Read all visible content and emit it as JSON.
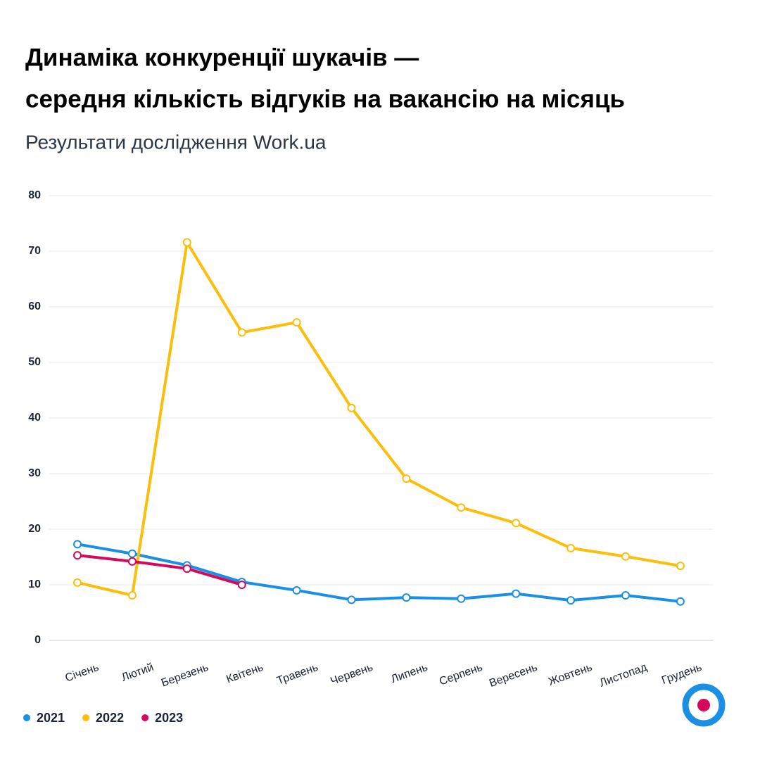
{
  "chart_data": {
    "type": "line",
    "title": [
      "Динаміка конкуренції шукачів —",
      "середня кількість відгуків на вакансію на місяць"
    ],
    "subtitle": "Результати дослідження Work.ua",
    "categories": [
      "Січень",
      "Лютий",
      "Березень",
      "Квітень",
      "Травень",
      "Червень",
      "Липень",
      "Серпень",
      "Вересень",
      "Жовтень",
      "Листопад",
      "Грудень"
    ],
    "series": [
      {
        "name": "2021",
        "color": "#1a8fe3",
        "values": [
          17.3,
          15.6,
          13.5,
          10.5,
          9.0,
          7.3,
          7.7,
          7.5,
          8.4,
          7.2,
          8.1,
          7.0
        ]
      },
      {
        "name": "2022",
        "color": "#fbbf0b",
        "values": [
          10.4,
          8.1,
          71.6,
          55.4,
          57.2,
          41.8,
          29.1,
          23.9,
          21.1,
          16.6,
          15.1,
          13.4
        ]
      },
      {
        "name": "2023",
        "color": "#d6085b",
        "values": [
          15.3,
          14.2,
          12.9,
          10.0,
          null,
          null,
          null,
          null,
          null,
          null,
          null,
          null
        ]
      }
    ],
    "ylim": [
      0,
      80
    ],
    "yticks": [
      0,
      10,
      20,
      30,
      40,
      50,
      60,
      70,
      80
    ],
    "grid": true,
    "legend": "bottom-left"
  }
}
